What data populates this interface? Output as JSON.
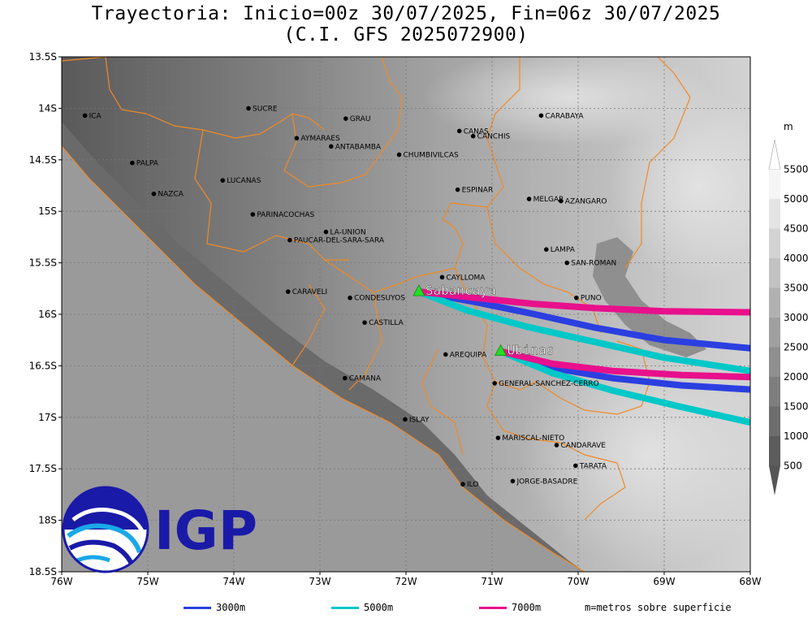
{
  "title_line1": "Trayectoria: Inicio=00z 30/07/2025, Fin=06z 30/07/2025",
  "title_line2": "(C.I. GFS 2025072900)",
  "axes": {
    "lon_labels": [
      "76W",
      "75W",
      "74W",
      "73W",
      "72W",
      "71W",
      "70W",
      "69W",
      "68W"
    ],
    "lat_labels": [
      "13.5S",
      "14S",
      "14.5S",
      "15S",
      "15.5S",
      "16S",
      "16.5S",
      "17S",
      "17.5S",
      "18S",
      "18.5S"
    ],
    "lon_range": [
      -76,
      -68
    ],
    "lat_range": [
      -18.5,
      -13.5
    ]
  },
  "places": [
    {
      "name": "ICA",
      "lon": -75.73,
      "lat": -14.07
    },
    {
      "name": "SUCRE",
      "lon": -73.83,
      "lat": -14.0
    },
    {
      "name": "GRAU",
      "lon": -72.7,
      "lat": -14.1
    },
    {
      "name": "CARABAYA",
      "lon": -70.43,
      "lat": -14.07
    },
    {
      "name": "CANAS",
      "lon": -71.38,
      "lat": -14.22
    },
    {
      "name": "CANCHIS",
      "lon": -71.22,
      "lat": -14.27
    },
    {
      "name": "AYMARAES",
      "lon": -73.27,
      "lat": -14.29
    },
    {
      "name": "ANTABAMBA",
      "lon": -72.87,
      "lat": -14.37
    },
    {
      "name": "CHUMBIVILCAS",
      "lon": -72.08,
      "lat": -14.45
    },
    {
      "name": "PALPA",
      "lon": -75.18,
      "lat": -14.53
    },
    {
      "name": "LUCANAS",
      "lon": -74.13,
      "lat": -14.7
    },
    {
      "name": "NAZCA",
      "lon": -74.93,
      "lat": -14.83
    },
    {
      "name": "ESPINAR",
      "lon": -71.4,
      "lat": -14.79
    },
    {
      "name": "MELGAR",
      "lon": -70.57,
      "lat": -14.88
    },
    {
      "name": "AZANGARO",
      "lon": -70.2,
      "lat": -14.9
    },
    {
      "name": "PARINACOCHAS",
      "lon": -73.78,
      "lat": -15.03
    },
    {
      "name": "LA-UNION",
      "lon": -72.93,
      "lat": -15.2
    },
    {
      "name": "PAUCAR-DEL-SARA-SARA",
      "lon": -73.35,
      "lat": -15.28
    },
    {
      "name": "LAMPA",
      "lon": -70.37,
      "lat": -15.37
    },
    {
      "name": "SAN-ROMAN",
      "lon": -70.13,
      "lat": -15.5
    },
    {
      "name": "CAYLLOMA",
      "lon": -71.58,
      "lat": -15.64
    },
    {
      "name": "CARAVELI",
      "lon": -73.37,
      "lat": -15.78
    },
    {
      "name": "CONDESUYOS",
      "lon": -72.65,
      "lat": -15.84
    },
    {
      "name": "PUNO",
      "lon": -70.02,
      "lat": -15.84
    },
    {
      "name": "CASTILLA",
      "lon": -72.48,
      "lat": -16.08
    },
    {
      "name": "AREQUIPA",
      "lon": -71.54,
      "lat": -16.39
    },
    {
      "name": "CAMANA",
      "lon": -72.71,
      "lat": -16.62
    },
    {
      "name": "GENERAL-SANCHEZ-CERRO",
      "lon": -70.97,
      "lat": -16.67
    },
    {
      "name": "ISLAY",
      "lon": -72.01,
      "lat": -17.02
    },
    {
      "name": "MARISCAL-NIETO",
      "lon": -70.93,
      "lat": -17.2
    },
    {
      "name": "CANDARAVE",
      "lon": -70.25,
      "lat": -17.27
    },
    {
      "name": "TARATA",
      "lon": -70.03,
      "lat": -17.47
    },
    {
      "name": "ILO",
      "lon": -71.34,
      "lat": -17.65
    },
    {
      "name": "JORGE-BASADRE",
      "lon": -70.76,
      "lat": -17.62
    }
  ],
  "volcanoes": [
    {
      "name": "Sabancaya",
      "lon": -71.85,
      "lat": -15.78
    },
    {
      "name": "Ubinas",
      "lon": -70.9,
      "lat": -16.36
    }
  ],
  "trajectories": [
    {
      "label": "3000m",
      "color": "#2b3fe0",
      "paths": [
        [
          [
            -71.85,
            -15.78
          ],
          [
            -71.2,
            -15.88
          ],
          [
            -70.5,
            -16.0
          ],
          [
            -69.8,
            -16.13
          ],
          [
            -69.0,
            -16.25
          ],
          [
            -68.0,
            -16.33
          ]
        ],
        [
          [
            -70.9,
            -16.36
          ],
          [
            -70.3,
            -16.52
          ],
          [
            -69.6,
            -16.62
          ],
          [
            -68.8,
            -16.69
          ],
          [
            -68.0,
            -16.73
          ]
        ]
      ]
    },
    {
      "label": "5000m",
      "color": "#00c8c8",
      "paths": [
        [
          [
            -71.85,
            -15.78
          ],
          [
            -71.3,
            -15.96
          ],
          [
            -70.6,
            -16.12
          ],
          [
            -69.8,
            -16.27
          ],
          [
            -69.0,
            -16.42
          ],
          [
            -68.0,
            -16.55
          ]
        ],
        [
          [
            -70.9,
            -16.36
          ],
          [
            -70.3,
            -16.57
          ],
          [
            -69.6,
            -16.74
          ],
          [
            -68.8,
            -16.9
          ],
          [
            -68.0,
            -17.05
          ]
        ]
      ]
    },
    {
      "label": "7000m",
      "color": "#e8108c",
      "paths": [
        [
          [
            -71.85,
            -15.78
          ],
          [
            -71.2,
            -15.84
          ],
          [
            -70.5,
            -15.9
          ],
          [
            -69.8,
            -15.94
          ],
          [
            -69.0,
            -15.97
          ],
          [
            -68.0,
            -15.98
          ]
        ],
        [
          [
            -70.9,
            -16.36
          ],
          [
            -70.3,
            -16.48
          ],
          [
            -69.6,
            -16.55
          ],
          [
            -68.8,
            -16.59
          ],
          [
            -68.0,
            -16.61
          ]
        ]
      ]
    }
  ],
  "colorbar": {
    "unit": "m",
    "labels": [
      "5500",
      "5000",
      "4500",
      "4000",
      "3500",
      "3000",
      "2500",
      "2000",
      "1500",
      "1000",
      "500"
    ]
  },
  "legend": {
    "items": [
      "3000m",
      "5000m",
      "7000m"
    ],
    "note": "m=metros sobre superficie"
  },
  "logo": {
    "text": "IGP",
    "color": "#1a1aa8"
  }
}
